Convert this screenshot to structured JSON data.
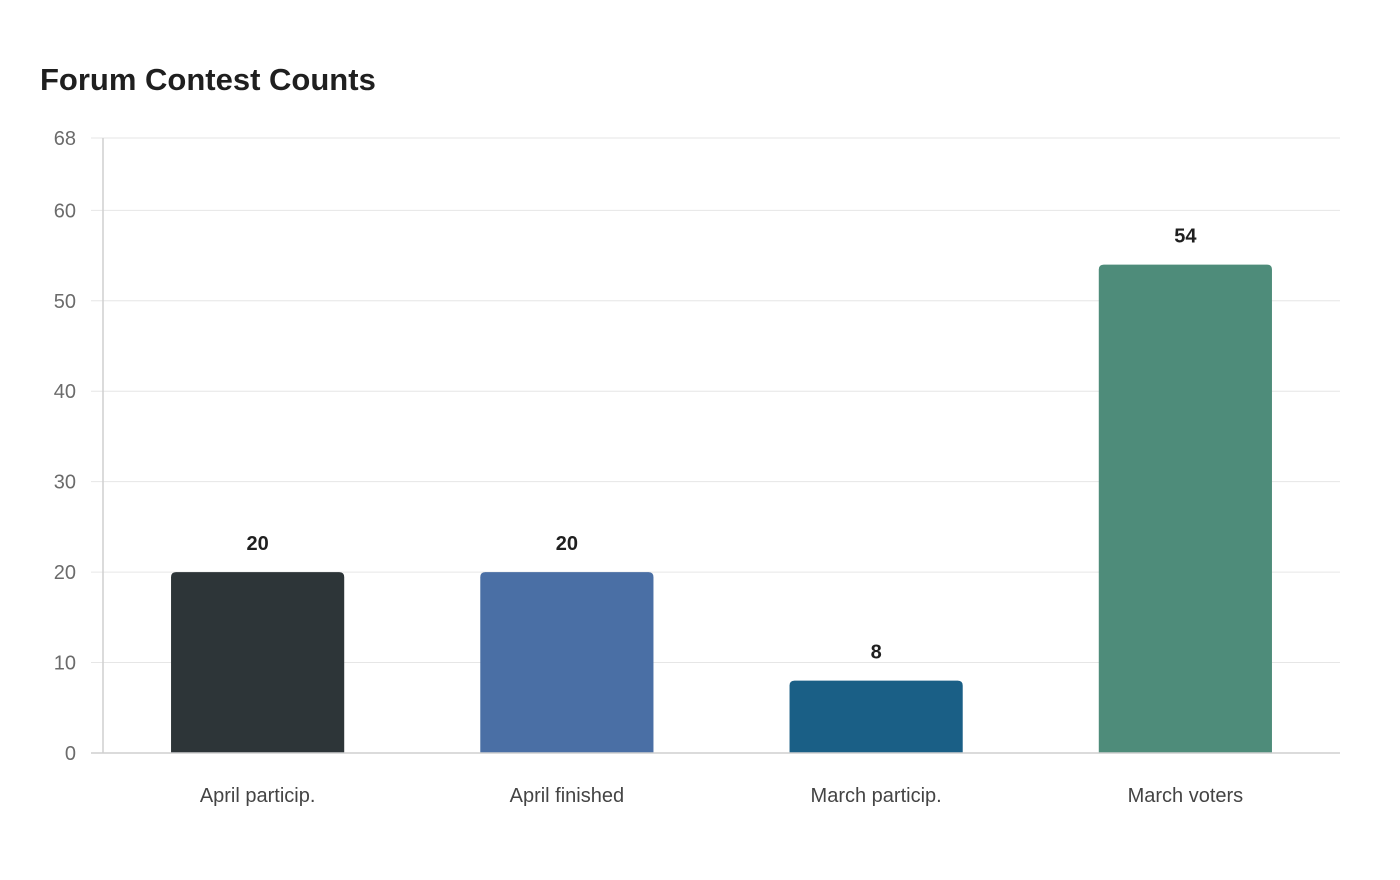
{
  "chart_data": {
    "type": "bar",
    "title": "Forum Contest Counts",
    "xlabel": "",
    "ylabel": "",
    "categories": [
      "April particip.",
      "April finished",
      "March particip.",
      "March voters"
    ],
    "values": [
      20,
      20,
      8,
      54
    ],
    "colors": [
      "#2d3538",
      "#4a6fa5",
      "#1a5f86",
      "#4e8c7a"
    ],
    "yticks": [
      0,
      10,
      20,
      30,
      40,
      50,
      60,
      68
    ],
    "ylim": [
      0,
      68
    ],
    "grid": true,
    "legend": "none"
  }
}
